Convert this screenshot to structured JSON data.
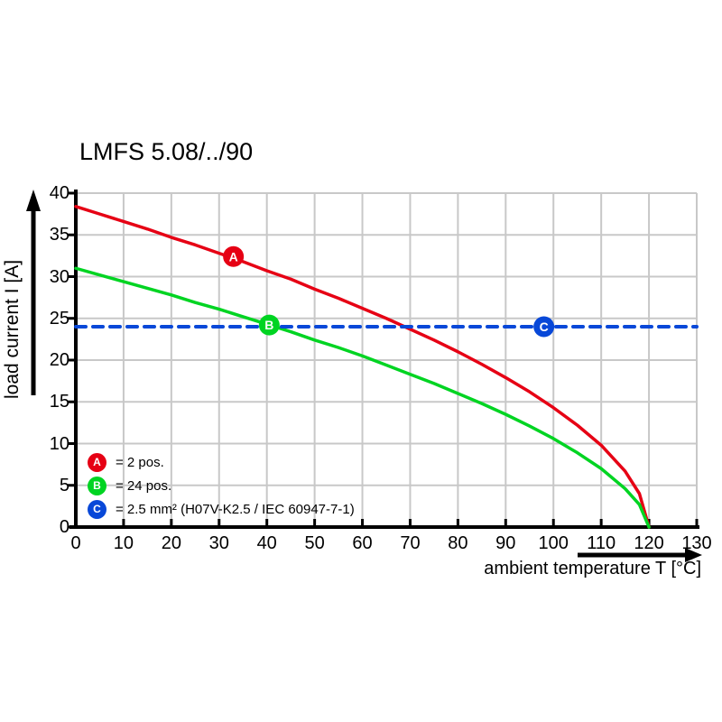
{
  "title": "LMFS 5.08/../90",
  "colors": {
    "red": "#e60014",
    "green": "#00d422",
    "blue": "#0848d8",
    "grid": "#c8c8c8",
    "axis": "#000000",
    "background": "#ffffff",
    "marker_letter": "#ffffff"
  },
  "chart_data": {
    "type": "line",
    "title": "LMFS 5.08/../90",
    "xlabel": "ambient temperature T [°C]",
    "ylabel": "load current I [A]",
    "xlim": [
      0,
      130
    ],
    "ylim": [
      0,
      40
    ],
    "x_ticks": [
      0,
      10,
      20,
      30,
      40,
      50,
      60,
      70,
      80,
      90,
      100,
      110,
      120,
      130
    ],
    "y_ticks": [
      0,
      5,
      10,
      15,
      20,
      25,
      30,
      35,
      40
    ],
    "grid": true,
    "legend_position": "bottom-left-inside",
    "series": [
      {
        "name": "A",
        "label": "2 pos.",
        "color": "#e60014",
        "style": "solid",
        "x": [
          0,
          5,
          10,
          15,
          20,
          25,
          30,
          35,
          40,
          45,
          50,
          55,
          60,
          65,
          70,
          75,
          80,
          85,
          90,
          95,
          100,
          105,
          110,
          115,
          118,
          120
        ],
        "y": [
          38.4,
          37.5,
          36.6,
          35.7,
          34.7,
          33.8,
          32.8,
          31.8,
          30.7,
          29.7,
          28.5,
          27.4,
          26.2,
          25.0,
          23.7,
          22.4,
          21.0,
          19.5,
          17.9,
          16.2,
          14.3,
          12.2,
          9.8,
          6.7,
          4.0,
          0
        ],
        "marker": {
          "letter": "A",
          "x": 33,
          "y": 32.4
        }
      },
      {
        "name": "B",
        "label": "24 pos.",
        "color": "#00d422",
        "style": "solid",
        "x": [
          0,
          5,
          10,
          15,
          20,
          25,
          30,
          35,
          40,
          45,
          50,
          55,
          60,
          65,
          70,
          75,
          80,
          85,
          90,
          95,
          100,
          105,
          110,
          115,
          118,
          120
        ],
        "y": [
          31,
          30.2,
          29.4,
          28.6,
          27.8,
          26.9,
          26.1,
          25.2,
          24.3,
          23.4,
          22.4,
          21.5,
          20.5,
          19.4,
          18.3,
          17.2,
          16.0,
          14.8,
          13.5,
          12.1,
          10.6,
          8.9,
          7.0,
          4.6,
          2.7,
          0
        ],
        "marker": {
          "letter": "B",
          "x": 40.5,
          "y": 24.2
        }
      },
      {
        "name": "C",
        "label": "2.5 mm² (H07V-K2.5 / IEC 60947-7-1)",
        "color": "#0848d8",
        "style": "dashed",
        "x": [
          0,
          130
        ],
        "y": [
          24,
          24
        ],
        "marker": {
          "letter": "C",
          "x": 98,
          "y": 24
        }
      }
    ],
    "legend": [
      {
        "letter": "A",
        "color": "#e60014",
        "text": "= 2 pos."
      },
      {
        "letter": "B",
        "color": "#00d422",
        "text": "= 24 pos."
      },
      {
        "letter": "C",
        "color": "#0848d8",
        "text": "= 2.5 mm² (H07V-K2.5 / IEC 60947-7-1)"
      }
    ]
  }
}
